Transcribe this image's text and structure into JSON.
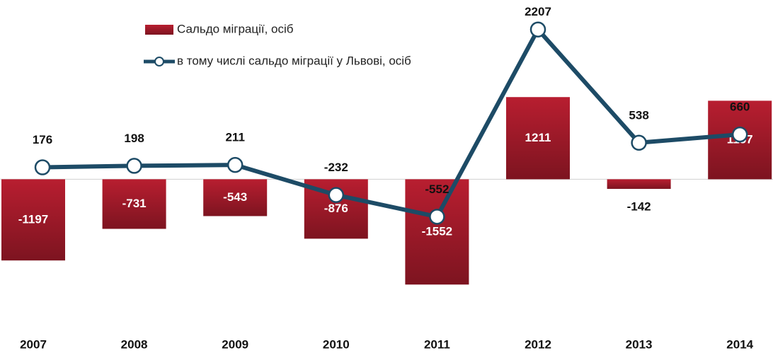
{
  "chart_data": {
    "type": "bar_line",
    "categories": [
      "2007",
      "2008",
      "2009",
      "2010",
      "2011",
      "2012",
      "2013",
      "2014"
    ],
    "series": [
      {
        "name": "Сальдо міграції, осіб",
        "type": "bar",
        "color": "#a31b2b",
        "values": [
          -1197,
          -731,
          -543,
          -876,
          -1552,
          1211,
          -142,
          1157
        ]
      },
      {
        "name": "в тому числі сальдо міграції у Львові, осіб",
        "type": "line",
        "color": "#1d4b66",
        "values": [
          176,
          198,
          211,
          -232,
          -552,
          2207,
          538,
          660
        ]
      }
    ],
    "ylim": [
      -2300,
      2600
    ]
  }
}
